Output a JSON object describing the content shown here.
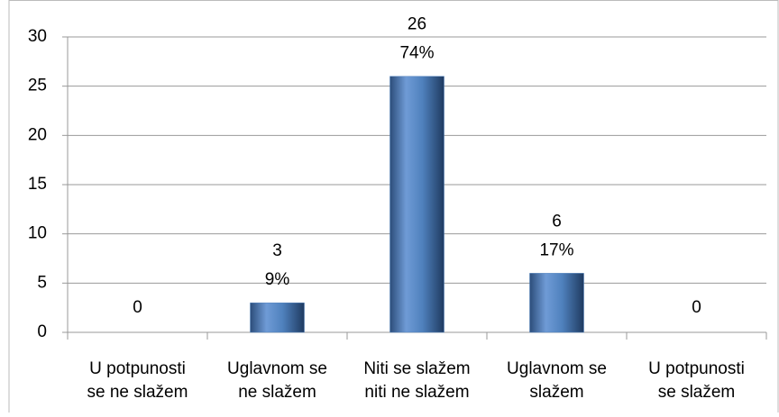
{
  "chart_data": {
    "type": "bar",
    "categories": [
      [
        "U potpunosti",
        "se ne slažem"
      ],
      [
        "Uglavnom se",
        "ne slažem"
      ],
      [
        "Niti se slažem",
        "niti ne slažem"
      ],
      [
        "Uglavnom se",
        "slažem"
      ],
      [
        "U potpunosti",
        "se slažem"
      ]
    ],
    "values": [
      0,
      3,
      26,
      6,
      0
    ],
    "percent_labels": [
      null,
      "9%",
      "74%",
      "17%",
      null
    ],
    "color": "#4f81bd",
    "ylim": [
      0,
      30
    ],
    "yticks": [
      0,
      5,
      10,
      15,
      20,
      25,
      30
    ],
    "grid": true
  }
}
